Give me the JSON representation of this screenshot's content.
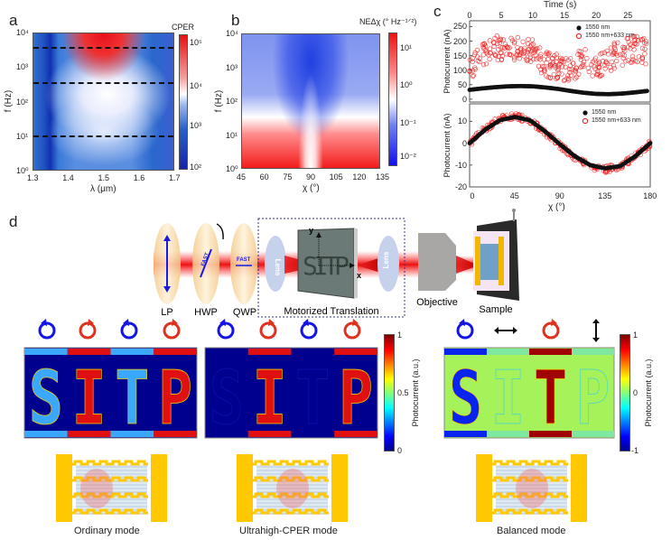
{
  "panel_a": {
    "label": "a",
    "colorbar_title": "CPER",
    "colorbar_ticks": [
      "10⁵",
      "10⁴",
      "10³",
      "10²"
    ],
    "y_ticks": [
      "10⁴",
      "10³",
      "10²",
      "10¹",
      "10⁰"
    ],
    "x_ticks": [
      "1.3",
      "1.4",
      "1.5",
      "1.6",
      "1.7"
    ],
    "xlabel": "λ (μm)",
    "ylabel": "f (Hz)"
  },
  "panel_b": {
    "label": "b",
    "colorbar_title": "NEΔχ (° Hz⁻¹ᐟ²)",
    "colorbar_ticks": [
      "10¹",
      "10⁰",
      "10⁻¹",
      "10⁻²"
    ],
    "y_ticks": [
      "10⁴",
      "10³",
      "10²",
      "10¹",
      "10⁰"
    ],
    "x_ticks": [
      "45",
      "60",
      "75",
      "90",
      "105",
      "120",
      "135"
    ],
    "xlabel": "χ (°)",
    "ylabel": "f (Hz)"
  },
  "panel_c_label": "c",
  "chart_data": [
    {
      "type": "scatter",
      "title": "",
      "xlabel": "Time (s)",
      "ylabel": "Photocurrent (nA)",
      "x_ticks": [
        "0",
        "5",
        "10",
        "15",
        "20",
        "25"
      ],
      "y_ticks": [
        "250",
        "200",
        "150",
        "100",
        "50",
        "0"
      ],
      "xlim": [
        0,
        28.5
      ],
      "ylim": [
        -10,
        270
      ],
      "legend": "top-right",
      "x": [
        0,
        2,
        4,
        6,
        8,
        10,
        12,
        14,
        16,
        18,
        20,
        22,
        24,
        26,
        28
      ],
      "series": [
        {
          "name": "1550 nm",
          "marker": "filled-black",
          "values": [
            32,
            37,
            41,
            44,
            45,
            44,
            40,
            35,
            28,
            22,
            18,
            17,
            19,
            23,
            28
          ]
        },
        {
          "name": "1550 nm+633 nm",
          "marker": "open-red",
          "values": [
            90,
            160,
            175,
            170,
            170,
            160,
            120,
            110,
            95,
            150,
            105,
            140,
            160,
            175,
            165
          ]
        }
      ]
    },
    {
      "type": "scatter",
      "xlabel": "χ (°)",
      "ylabel": "Photocurrent (nA)",
      "x_ticks": [
        "0",
        "45",
        "90",
        "135",
        "180"
      ],
      "y_ticks": [
        "10",
        "0",
        "-10",
        "-20"
      ],
      "xlim": [
        0,
        180
      ],
      "ylim": [
        -20,
        18
      ],
      "legend": "top-right",
      "x": [
        0,
        15,
        30,
        45,
        60,
        75,
        90,
        105,
        120,
        135,
        150,
        165,
        180
      ],
      "series": [
        {
          "name": "1550 nm",
          "marker": "filled-black",
          "values": [
            0,
            6,
            10.5,
            12,
            10.5,
            5.5,
            -0.5,
            -6,
            -10,
            -11.5,
            -10.5,
            -6,
            0
          ]
        },
        {
          "name": "1550 nm+633 nm",
          "marker": "open-red",
          "values": [
            0,
            6.5,
            11,
            12.5,
            10.5,
            5,
            -1,
            -6.5,
            -10.5,
            -12,
            -10.5,
            -6,
            0
          ]
        }
      ]
    }
  ],
  "panel_d": {
    "label": "d",
    "optics": {
      "lp": "LP",
      "hwp": "HWP",
      "qwp": "QWP",
      "fast": "FAST",
      "lens": "Lens",
      "translation": "Motorized Translation",
      "mask_text": "SITP",
      "axis_x": "x",
      "axis_y": "y",
      "objective": "Objective",
      "sample": "Sample"
    },
    "maps": [
      {
        "letters": "SITP",
        "polarizations": [
          "lcp",
          "rcp",
          "lcp",
          "rcp"
        ]
      },
      {
        "letters": "SITP",
        "polarizations": [
          "lcp",
          "rcp",
          "lcp",
          "rcp"
        ]
      },
      {
        "letters": "SITP",
        "polarizations": [
          "lcp",
          "horizontal",
          "rcp",
          "vertical"
        ]
      }
    ],
    "colorbar1": {
      "title": "Photocurrent (a.u.)",
      "ticks": [
        "1",
        "0.5",
        "0"
      ]
    },
    "colorbar2": {
      "title": "Photocurrent (a.u.)",
      "ticks": [
        "1",
        "0",
        "-1"
      ]
    },
    "modes": [
      "Ordinary mode",
      "Ultrahigh-CPER mode",
      "Balanced mode"
    ],
    "colors": {
      "lcp": "#1414e6",
      "rcp": "#e0301e",
      "gold": "#ffc800",
      "jet_low": "#00008f",
      "jet_mid": "#a8f050",
      "jet_high": "#b00000"
    }
  }
}
